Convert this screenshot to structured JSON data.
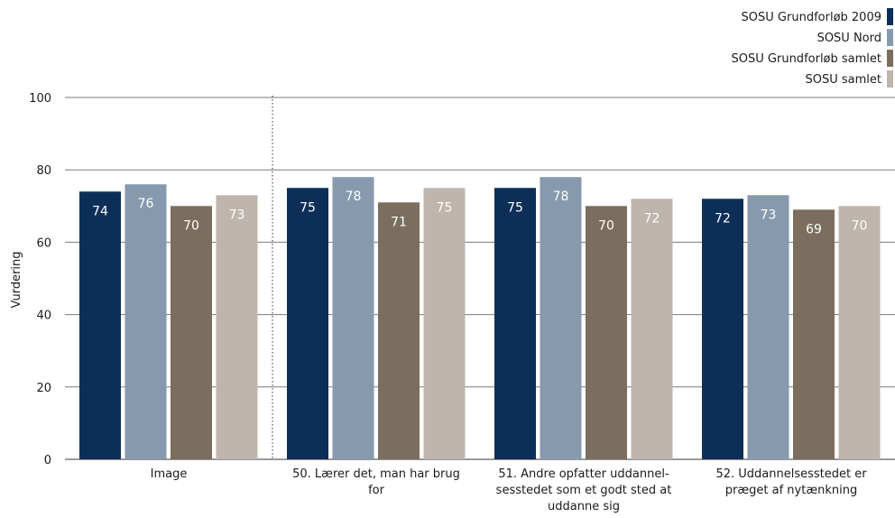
{
  "chart_data": {
    "type": "bar",
    "ylabel": "Vurdering",
    "ylim": [
      0,
      100
    ],
    "yticks": [
      0,
      20,
      40,
      60,
      80,
      100
    ],
    "grid": "horizontal",
    "legend_position": "top-right",
    "categories": [
      [
        "Image"
      ],
      [
        "50. Lærer det, man har brug",
        "for"
      ],
      [
        "51. Andre opfatter uddannel-",
        "sesstedet som et godt sted at",
        "uddanne sig"
      ],
      [
        "52. Uddannelsesstedet er",
        "præget af nytænkning"
      ]
    ],
    "series": [
      {
        "name": "SOSU Grundforløb 2009",
        "color": "#0d2f57",
        "label_color": "#ffffff",
        "values": [
          74,
          75,
          75,
          72
        ]
      },
      {
        "name": "SOSU Nord",
        "color": "#8799ad",
        "label_color": "#ffffff",
        "values": [
          76,
          78,
          78,
          73
        ]
      },
      {
        "name": "SOSU Grundforløb samlet",
        "color": "#7b6e5e",
        "label_color": "#ffffff",
        "values": [
          70,
          71,
          70,
          69
        ]
      },
      {
        "name": "SOSU samlet",
        "color": "#beb6ae",
        "label_color": "#ffffff",
        "values": [
          73,
          75,
          72,
          70
        ]
      }
    ]
  }
}
